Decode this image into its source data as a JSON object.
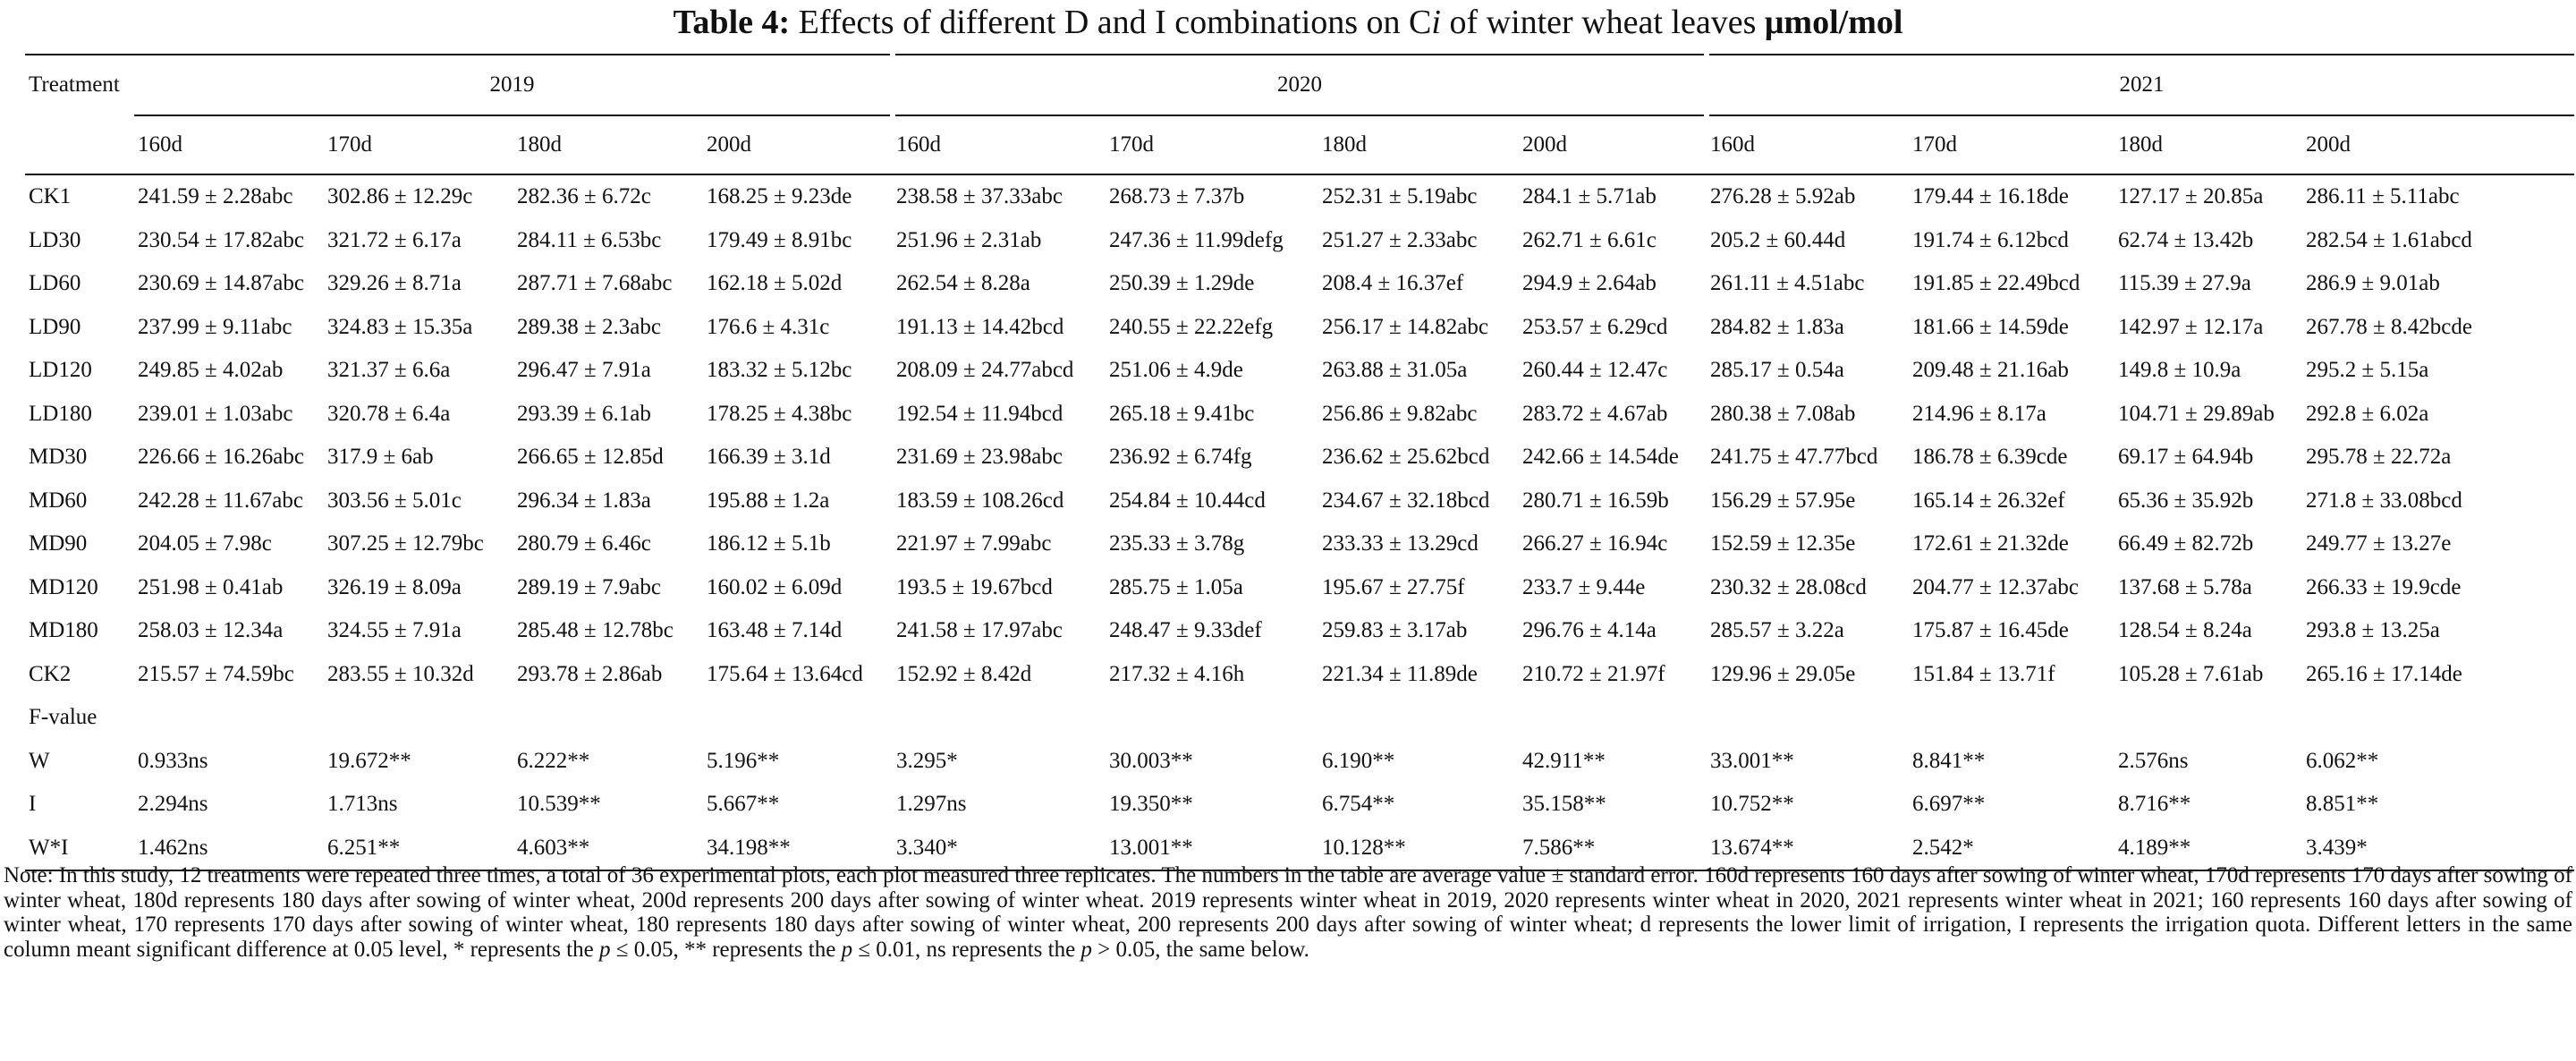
{
  "caption": {
    "prefix": "Table 4:",
    "title_a": "Effects of different D and I combinations on C",
    "title_i": "i",
    "title_b": "of winter wheat leaves",
    "unit": "μmol/mol"
  },
  "header": {
    "treatment_label": "Treatment",
    "years": [
      "2019",
      "2020",
      "2021"
    ],
    "days": [
      "160d",
      "170d",
      "180d",
      "200d",
      "160d",
      "170d",
      "180d",
      "200d",
      "160d",
      "170d",
      "180d",
      "200d"
    ]
  },
  "rows": [
    {
      "t": "CK1",
      "v": [
        "241.59 ± 2.28abc",
        "302.86 ± 12.29c",
        "282.36 ± 6.72c",
        "168.25 ± 9.23de",
        "238.58 ± 37.33abc",
        "268.73 ± 7.37b",
        "252.31 ± 5.19abc",
        "284.1 ± 5.71ab",
        "276.28 ± 5.92ab",
        "179.44 ± 16.18de",
        "127.17 ± 20.85a",
        "286.11 ± 5.11abc"
      ]
    },
    {
      "t": "LD30",
      "v": [
        "230.54 ± 17.82abc",
        "321.72 ± 6.17a",
        "284.11 ± 6.53bc",
        "179.49 ± 8.91bc",
        "251.96 ± 2.31ab",
        "247.36 ± 11.99defg",
        "251.27 ± 2.33abc",
        "262.71 ± 6.61c",
        "205.2 ± 60.44d",
        "191.74 ± 6.12bcd",
        "62.74 ± 13.42b",
        "282.54 ± 1.61abcd"
      ]
    },
    {
      "t": "LD60",
      "v": [
        "230.69 ± 14.87abc",
        "329.26 ± 8.71a",
        "287.71 ± 7.68abc",
        "162.18 ± 5.02d",
        "262.54 ± 8.28a",
        "250.39 ± 1.29de",
        "208.4 ± 16.37ef",
        "294.9 ± 2.64ab",
        "261.11 ± 4.51abc",
        "191.85 ± 22.49bcd",
        "115.39 ± 27.9a",
        "286.9 ± 9.01ab"
      ]
    },
    {
      "t": "LD90",
      "v": [
        "237.99 ± 9.11abc",
        "324.83 ± 15.35a",
        "289.38 ± 2.3abc",
        "176.6 ± 4.31c",
        "191.13 ± 14.42bcd",
        "240.55 ± 22.22efg",
        "256.17 ± 14.82abc",
        "253.57 ± 6.29cd",
        "284.82 ± 1.83a",
        "181.66 ± 14.59de",
        "142.97 ± 12.17a",
        "267.78 ± 8.42bcde"
      ]
    },
    {
      "t": "LD120",
      "v": [
        "249.85 ± 4.02ab",
        "321.37 ± 6.6a",
        "296.47 ± 7.91a",
        "183.32 ± 5.12bc",
        "208.09 ± 24.77abcd",
        "251.06 ± 4.9de",
        "263.88 ± 31.05a",
        "260.44 ± 12.47c",
        "285.17 ± 0.54a",
        "209.48 ± 21.16ab",
        "149.8 ± 10.9a",
        "295.2 ± 5.15a"
      ]
    },
    {
      "t": "LD180",
      "v": [
        "239.01 ± 1.03abc",
        "320.78 ± 6.4a",
        "293.39 ± 6.1ab",
        "178.25 ± 4.38bc",
        "192.54 ± 11.94bcd",
        "265.18 ± 9.41bc",
        "256.86 ± 9.82abc",
        "283.72 ± 4.67ab",
        "280.38 ± 7.08ab",
        "214.96 ± 8.17a",
        "104.71 ± 29.89ab",
        "292.8 ± 6.02a"
      ]
    },
    {
      "t": "MD30",
      "v": [
        "226.66 ± 16.26abc",
        "317.9 ± 6ab",
        "266.65 ± 12.85d",
        "166.39 ± 3.1d",
        "231.69 ± 23.98abc",
        "236.92 ± 6.74fg",
        "236.62 ± 25.62bcd",
        "242.66 ± 14.54de",
        "241.75 ± 47.77bcd",
        "186.78 ± 6.39cde",
        "69.17 ± 64.94b",
        "295.78 ± 22.72a"
      ]
    },
    {
      "t": "MD60",
      "v": [
        "242.28 ± 11.67abc",
        "303.56 ± 5.01c",
        "296.34 ± 1.83a",
        "195.88 ± 1.2a",
        "183.59 ± 108.26cd",
        "254.84 ± 10.44cd",
        "234.67 ± 32.18bcd",
        "280.71 ± 16.59b",
        "156.29 ± 57.95e",
        "165.14 ± 26.32ef",
        "65.36 ± 35.92b",
        "271.8 ± 33.08bcd"
      ]
    },
    {
      "t": "MD90",
      "v": [
        "204.05 ± 7.98c",
        "307.25 ± 12.79bc",
        "280.79 ± 6.46c",
        "186.12 ± 5.1b",
        "221.97 ± 7.99abc",
        "235.33 ± 3.78g",
        "233.33 ± 13.29cd",
        "266.27 ± 16.94c",
        "152.59 ± 12.35e",
        "172.61 ± 21.32de",
        "66.49 ± 82.72b",
        "249.77 ± 13.27e"
      ]
    },
    {
      "t": "MD120",
      "v": [
        "251.98 ± 0.41ab",
        "326.19 ± 8.09a",
        "289.19 ± 7.9abc",
        "160.02 ± 6.09d",
        "193.5 ± 19.67bcd",
        "285.75 ± 1.05a",
        "195.67 ± 27.75f",
        "233.7 ± 9.44e",
        "230.32 ± 28.08cd",
        "204.77 ± 12.37abc",
        "137.68 ± 5.78a",
        "266.33 ± 19.9cde"
      ]
    },
    {
      "t": "MD180",
      "v": [
        "258.03 ± 12.34a",
        "324.55 ± 7.91a",
        "285.48 ± 12.78bc",
        "163.48 ± 7.14d",
        "241.58 ± 17.97abc",
        "248.47 ± 9.33def",
        "259.83 ± 3.17ab",
        "296.76 ± 4.14a",
        "285.57 ± 3.22a",
        "175.87 ± 16.45de",
        "128.54 ± 8.24a",
        "293.8 ± 13.25a"
      ]
    },
    {
      "t": "CK2",
      "v": [
        "215.57 ± 74.59bc",
        "283.55 ± 10.32d",
        "293.78 ± 2.86ab",
        "175.64 ± 13.64cd",
        "152.92 ± 8.42d",
        "217.32 ± 4.16h",
        "221.34 ± 11.89de",
        "210.72 ± 21.97f",
        "129.96 ± 29.05e",
        "151.84 ± 13.71f",
        "105.28 ± 7.61ab",
        "265.16 ± 17.14de"
      ]
    },
    {
      "t": "F-value",
      "v": [
        "",
        "",
        "",
        "",
        "",
        "",
        "",
        "",
        "",
        "",
        "",
        ""
      ]
    },
    {
      "t": "W",
      "v": [
        "0.933ns",
        "19.672**",
        "6.222**",
        "5.196**",
        "3.295*",
        "30.003**",
        "6.190**",
        "42.911**",
        "33.001**",
        "8.841**",
        "2.576ns",
        "6.062**"
      ]
    },
    {
      "t": "I",
      "v": [
        "2.294ns",
        "1.713ns",
        "10.539**",
        "5.667**",
        "1.297ns",
        "19.350**",
        "6.754**",
        "35.158**",
        "10.752**",
        "6.697**",
        "8.716**",
        "8.851**"
      ]
    },
    {
      "t": "W*I",
      "v": [
        "1.462ns",
        "6.251**",
        "4.603**",
        "34.198**",
        "3.340*",
        "13.001**",
        "10.128**",
        "7.586**",
        "13.674**",
        "2.542*",
        "4.189**",
        "3.439*"
      ]
    }
  ],
  "note": {
    "part1": "Note: In this study, 12 treatments were repeated three times, a total of 36 experimental plots, each plot measured three replicates. The numbers in the table are average value ± standard error. 160d represents 160 days after sowing of winter wheat, 170d represents 170 days after sowing of winter wheat, 180d represents 180 days after sowing of winter wheat, 200d represents 200 days after sowing of winter wheat. 2019 represents winter wheat in 2019, 2020 represents winter wheat in 2020, 2021 represents winter wheat in 2021; 160 represents 160 days after sowing of winter wheat, 170 represents 170 days after sowing of winter wheat, 180 represents 180 days after sowing of winter wheat, 200 represents 200 days after sowing of winter wheat; d represents the lower limit of irrigation, I represents the irrigation quota. Different letters in the same column meant significant difference at 0.05 level, * represents the",
    "p": "p",
    "le05": "≤ 0.05, ** represents the",
    "le01": "≤ 0.01, ns represents the",
    "gt05": "> 0.05, the same below."
  }
}
